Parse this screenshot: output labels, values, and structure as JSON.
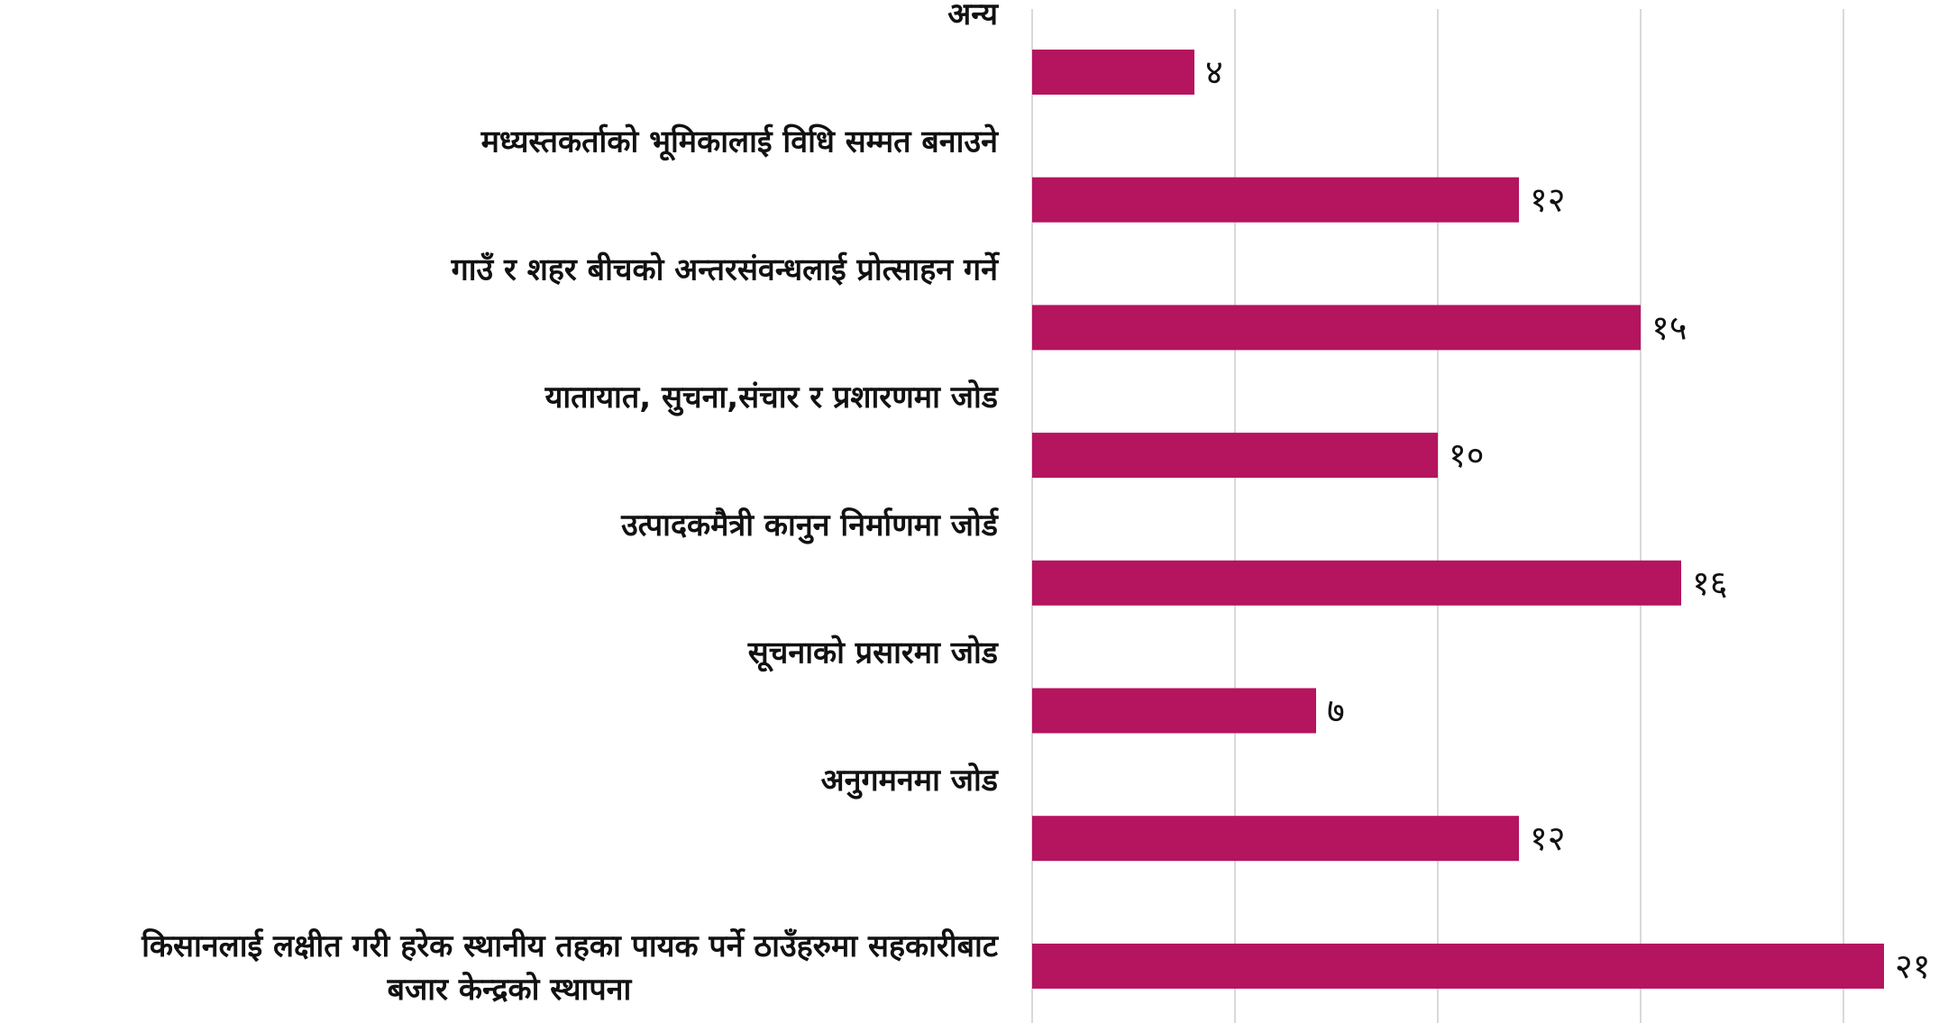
{
  "chart_data": {
    "type": "bar",
    "orientation": "horizontal",
    "categories": [
      "अन्य",
      "मध्यस्तकर्ताको भूमिकालाई विधि सम्मत बनाउने",
      "गाउँ र शहर बीचको अन्तरसंवन्धलाई प्रोत्साहन गर्ने",
      "यातायात, सुचना,संचार र प्रशारणमा जोड",
      "उत्पादकमैत्री कानुन निर्माणमा जोर्ड",
      "सूचनाको प्रसारमा जोड",
      "अनुगमनमा जोड",
      "किसानलाई लक्षीत गरी हरेक स्थानीय तहका पायक पर्ने ठाउँहरुमा सहकारीबाट बजार केन्द्रको स्थापना"
    ],
    "label_lines": [
      [
        "अन्य"
      ],
      [
        "मध्यस्तकर्ताको भूमिकालाई विधि सम्मत बनाउने"
      ],
      [
        "गाउँ र शहर बीचको अन्तरसंवन्धलाई प्रोत्साहन गर्ने"
      ],
      [
        "यातायात, सुचना,संचार र प्रशारणमा जोड"
      ],
      [
        "उत्पादकमैत्री कानुन निर्माणमा जोर्ड"
      ],
      [
        "सूचनाको प्रसारमा जोड"
      ],
      [
        "अनुगमनमा जोड"
      ],
      [
        "किसानलाई लक्षीत गरी हरेक स्थानीय तहका पायक पर्ने ठाउँहरुमा सहकारीबाट",
        "बजार केन्द्रको स्थापना"
      ]
    ],
    "values": [
      4,
      12,
      15,
      10,
      16,
      7,
      12,
      21
    ],
    "value_labels": [
      "४",
      "१२",
      "१५",
      "१०",
      "१६",
      "७",
      "१२",
      "२१"
    ],
    "xlim": [
      0,
      22
    ],
    "grid_step": 5,
    "grid": true,
    "bar_color": "#b5145f",
    "grid_color": "#d9d9d9",
    "title": "",
    "xlabel": "",
    "ylabel": ""
  }
}
